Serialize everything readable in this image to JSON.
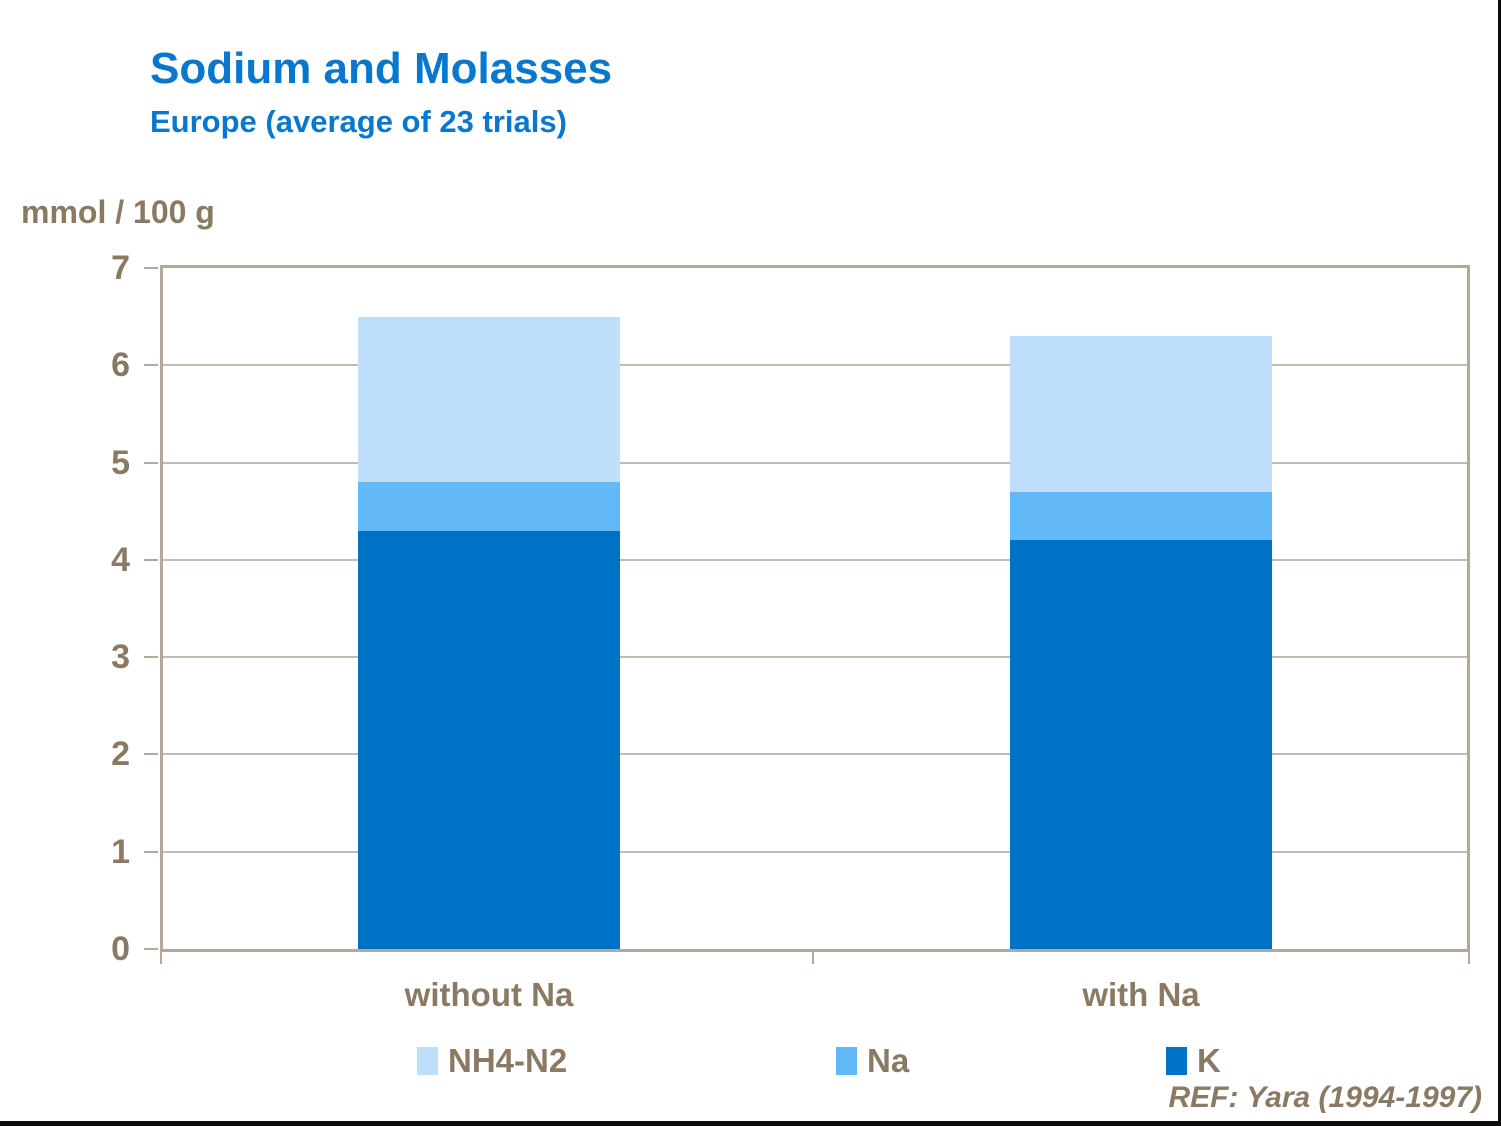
{
  "title": "Sodium and Molasses",
  "subtitle": "Europe (average of 23 trials)",
  "unit_label": "mmol / 100 g",
  "footer": {
    "ref": "REF: Yara (1994-1997)"
  },
  "colors": {
    "title_blue": "#0878ce",
    "k_bar": "#0072c6",
    "na_bar": "#63b8f7",
    "nh4_bar": "#bddffb",
    "axis_text_brown": "#8b7a63",
    "axis_line": "#b3a89c",
    "gridline": "#c3bab0",
    "frame_edge_black": "#0b0b0c",
    "background": "#ffffff"
  },
  "chart_data": {
    "type": "bar",
    "stacked": true,
    "title": "Sodium and Molasses",
    "subtitle": "Europe (average of 23 trials)",
    "ylabel": "mmol / 100 g",
    "xlabel": "",
    "categories": [
      "without Na",
      "with Na"
    ],
    "series": [
      {
        "name": "K",
        "color": "#0072c6",
        "values": [
          4.3,
          4.2
        ]
      },
      {
        "name": "Na",
        "color": "#63b8f7",
        "values": [
          0.5,
          0.5
        ]
      },
      {
        "name": "NH4-N2",
        "color": "#bddffb",
        "values": [
          1.7,
          1.6
        ]
      }
    ],
    "stack_totals": [
      6.5,
      6.3
    ],
    "ylim": [
      0,
      7
    ],
    "yticks": [
      0,
      1,
      2,
      3,
      4,
      5,
      6,
      7
    ],
    "grid": true,
    "legend_position": "bottom",
    "legend_order": [
      "NH4-N2",
      "Na",
      "K"
    ],
    "annotation": "REF: Yara (1994-1997)"
  }
}
